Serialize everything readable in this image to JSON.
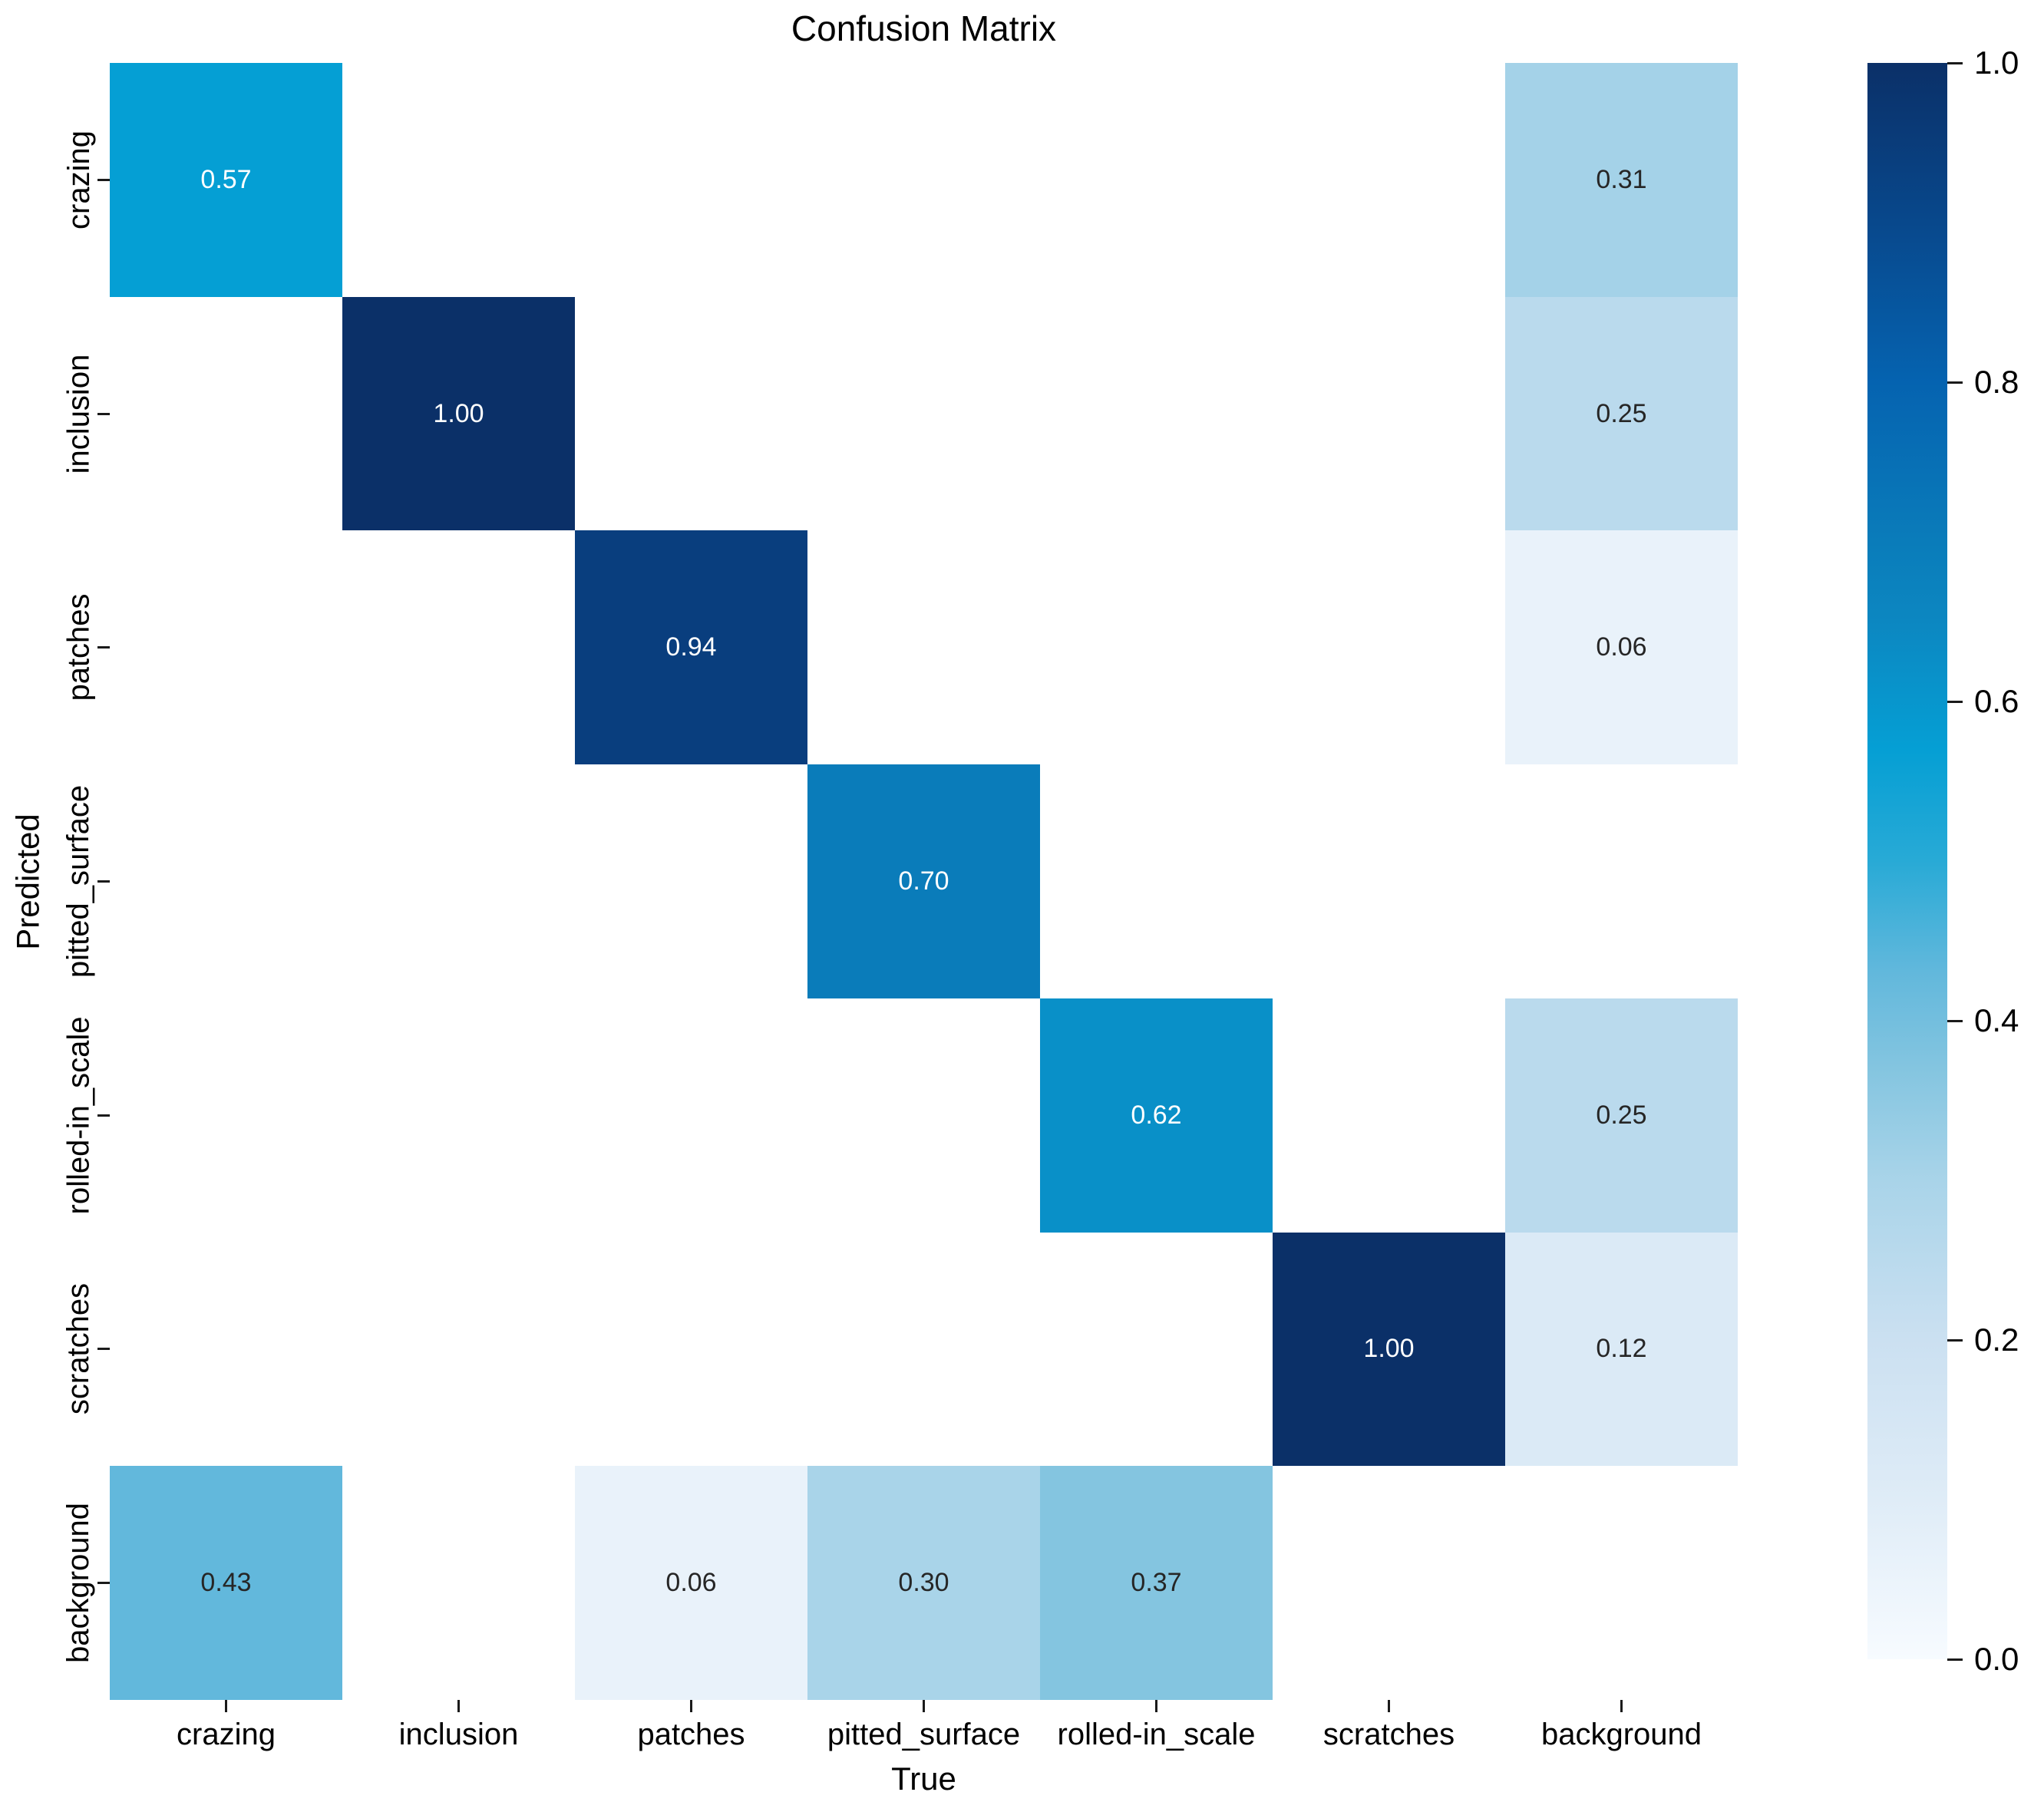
{
  "title": "Confusion Matrix",
  "chart_data": {
    "type": "heatmap",
    "title": "Confusion Matrix",
    "xlabel": "True",
    "ylabel": "Predicted",
    "x_categories": [
      "crazing",
      "inclusion",
      "patches",
      "pitted_surface",
      "rolled-in_scale",
      "scratches",
      "background"
    ],
    "y_categories": [
      "crazing",
      "inclusion",
      "patches",
      "pitted_surface",
      "rolled-in_scale",
      "scratches",
      "background"
    ],
    "values": [
      [
        0.57,
        null,
        null,
        null,
        null,
        null,
        0.31
      ],
      [
        null,
        1.0,
        null,
        null,
        null,
        null,
        0.25
      ],
      [
        null,
        null,
        0.94,
        null,
        null,
        null,
        0.06
      ],
      [
        null,
        null,
        null,
        0.7,
        null,
        null,
        null
      ],
      [
        null,
        null,
        null,
        null,
        0.62,
        null,
        0.25
      ],
      [
        null,
        null,
        null,
        null,
        null,
        1.0,
        0.12
      ],
      [
        0.43,
        null,
        0.06,
        0.3,
        0.37,
        null,
        null
      ]
    ],
    "annotation_decimals": 2,
    "colorbar": {
      "min": 0.0,
      "max": 1.0,
      "tick_values": [
        1.0,
        0.8,
        0.6,
        0.4,
        0.2,
        0.0
      ],
      "tick_labels": [
        "1.0",
        "0.8",
        "0.6",
        "0.4",
        "0.2",
        "0.0"
      ]
    },
    "colors": {
      "colormap_stops": [
        [
          0.0,
          "#f7fbff"
        ],
        [
          0.1,
          "#dfecf7"
        ],
        [
          0.2,
          "#cbe0f1"
        ],
        [
          0.3,
          "#a9d4e9"
        ],
        [
          0.37,
          "#84c5e0"
        ],
        [
          0.43,
          "#62b8dc"
        ],
        [
          0.5,
          "#28aad6"
        ],
        [
          0.57,
          "#059fd4"
        ],
        [
          0.65,
          "#0c87c1"
        ],
        [
          0.7,
          "#0a7cba"
        ],
        [
          0.8,
          "#0563b0"
        ],
        [
          0.9,
          "#08488c"
        ],
        [
          1.0,
          "#0b3068"
        ]
      ],
      "empty_cell": "#ffffff",
      "annotation_dark": "#262626",
      "annotation_light": "#ffffff",
      "light_text_threshold": 0.5,
      "background": "#ffffff",
      "tick_color": "#1a1a1a"
    }
  }
}
